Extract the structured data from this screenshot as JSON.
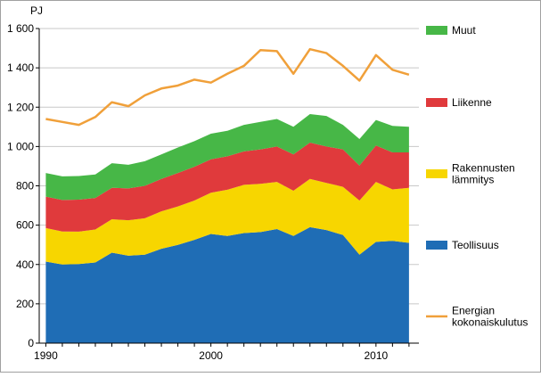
{
  "chart_data": {
    "type": "area",
    "title": "",
    "ylabel": "PJ",
    "xlabel": "",
    "x": [
      1990,
      1991,
      1992,
      1993,
      1994,
      1995,
      1996,
      1997,
      1998,
      1999,
      2000,
      2001,
      2002,
      2003,
      2004,
      2005,
      2006,
      2007,
      2008,
      2009,
      2010,
      2011,
      2012
    ],
    "xticks": [
      1990,
      2000,
      2010
    ],
    "ylim": [
      0,
      1600
    ],
    "yticks": [
      {
        "value": 0,
        "label": "0"
      },
      {
        "value": 200,
        "label": "200"
      },
      {
        "value": 400,
        "label": "400"
      },
      {
        "value": 600,
        "label": "600"
      },
      {
        "value": 800,
        "label": "800"
      },
      {
        "value": 1000,
        "label": "1 000"
      },
      {
        "value": 1200,
        "label": "1 200"
      },
      {
        "value": 1400,
        "label": "1 400"
      },
      {
        "value": 1600,
        "label": "1 600"
      }
    ],
    "series": [
      {
        "name": "Teollisuus",
        "kind": "stacked-area",
        "color": "#1f6db5",
        "values": [
          415,
          400,
          402,
          410,
          460,
          445,
          450,
          480,
          500,
          525,
          555,
          545,
          560,
          565,
          580,
          545,
          590,
          575,
          550,
          450,
          515,
          520,
          510
        ]
      },
      {
        "name": "Rakennusten lämmitys",
        "kind": "stacked-area",
        "color": "#f7d600",
        "values": [
          170,
          168,
          165,
          168,
          170,
          180,
          185,
          190,
          195,
          200,
          210,
          235,
          245,
          245,
          240,
          230,
          245,
          240,
          245,
          275,
          305,
          262,
          280
        ]
      },
      {
        "name": "Liikenne",
        "kind": "stacked-area",
        "color": "#e03a3c",
        "values": [
          160,
          160,
          163,
          160,
          160,
          162,
          165,
          165,
          170,
          172,
          170,
          170,
          170,
          175,
          180,
          185,
          185,
          185,
          190,
          178,
          185,
          188,
          180
        ]
      },
      {
        "name": "Muut",
        "kind": "stacked-area",
        "color": "#47b747",
        "values": [
          120,
          120,
          120,
          120,
          125,
          120,
          125,
          125,
          130,
          130,
          130,
          130,
          135,
          140,
          140,
          140,
          145,
          155,
          125,
          135,
          130,
          135,
          130
        ]
      },
      {
        "name": "Energian kokonaiskulutus",
        "kind": "line",
        "color": "#f0a03a",
        "values": [
          1140,
          1125,
          1110,
          1150,
          1225,
          1205,
          1260,
          1295,
          1310,
          1340,
          1325,
          1370,
          1410,
          1490,
          1485,
          1370,
          1495,
          1475,
          1410,
          1335,
          1465,
          1390,
          1365
        ]
      }
    ],
    "legend": [
      {
        "label_lines": [
          "Muut"
        ],
        "color": "#47b747",
        "shape": "box"
      },
      {
        "label_lines": [
          "Liikenne"
        ],
        "color": "#e03a3c",
        "shape": "box"
      },
      {
        "label_lines": [
          "Rakennusten",
          "lämmitys"
        ],
        "color": "#f7d600",
        "shape": "box"
      },
      {
        "label_lines": [
          "Teollisuus"
        ],
        "color": "#1f6db5",
        "shape": "box"
      },
      {
        "label_lines": [
          "Energian",
          "kokonaiskulutus"
        ],
        "color": "#f0a03a",
        "shape": "line"
      }
    ],
    "legend_position": "right",
    "grid": "horizontal"
  }
}
